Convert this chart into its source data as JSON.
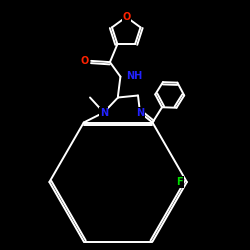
{
  "bg": "#000000",
  "bond_color": "#ffffff",
  "O_color": "#ff2200",
  "N_color": "#2222ff",
  "F_color": "#00dd00",
  "lw": 1.4,
  "fs": 7.0,
  "xlim": [
    0,
    10
  ],
  "ylim": [
    0,
    10
  ]
}
